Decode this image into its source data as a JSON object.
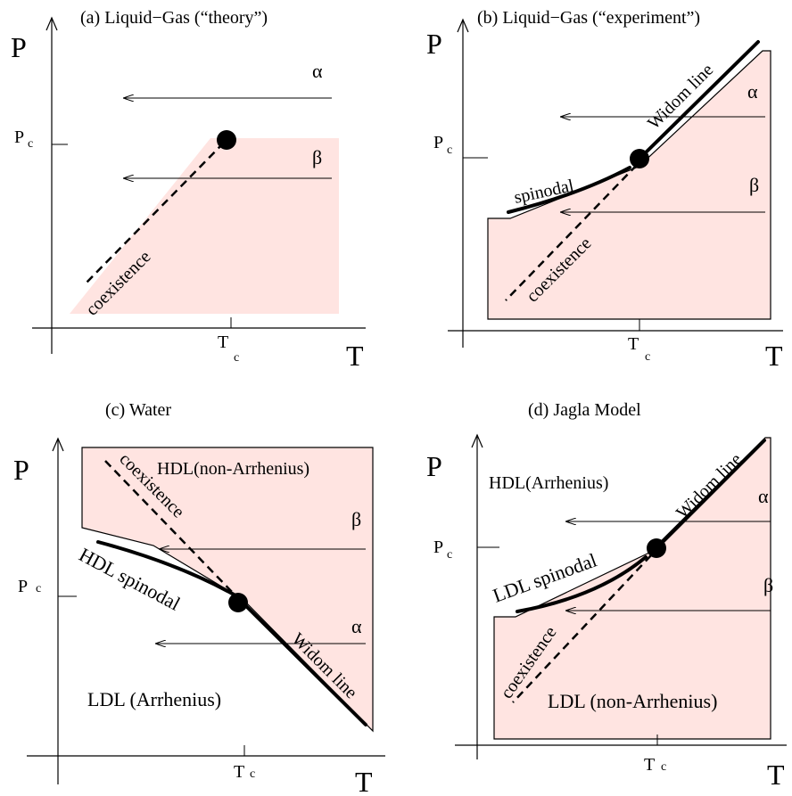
{
  "panels": {
    "a": {
      "title": "(a) Liquid−Gas (“theory”)",
      "y_axis": "P",
      "x_axis": "T",
      "pc": "P",
      "pc_sub": "c",
      "tc": "T",
      "tc_sub": "c",
      "coexistence": "coexistence",
      "alpha": "α",
      "beta": "β"
    },
    "b": {
      "title": "(b) Liquid−Gas (“experiment”)",
      "y_axis": "P",
      "x_axis": "T",
      "pc": "P",
      "pc_sub": "c",
      "tc": "T",
      "tc_sub": "c",
      "widom": "Widom line",
      "spinodal": "spinodal",
      "coexistence": "coexistence",
      "alpha": "α",
      "beta": "β"
    },
    "c": {
      "title": "(c) Water",
      "y_axis": "P",
      "x_axis": "T",
      "pc": "P",
      "pc_sub": "c",
      "tc": "T",
      "tc_sub": "c",
      "coexistence": "coexistence",
      "hdl": "HDL(non-Arrhenius)",
      "spinodal": "HDL spinodal",
      "ldl": "LDL (Arrhenius)",
      "widom": "Widom line",
      "alpha": "α",
      "beta": "β"
    },
    "d": {
      "title": "(d) Jagla Model",
      "y_axis": "P",
      "x_axis": "T",
      "pc": "P",
      "pc_sub": "c",
      "tc": "T",
      "tc_sub": "c",
      "hdl": "HDL(Arrhenius)",
      "widom": "Widom line",
      "spinodal": "LDL spinodal",
      "coexistence": "coexistence",
      "ldl": "LDL (non-Arrhenius)",
      "alpha": "α",
      "beta": "β"
    }
  },
  "colors": {
    "shade": "#ffe4e1",
    "ink": "#000000"
  }
}
